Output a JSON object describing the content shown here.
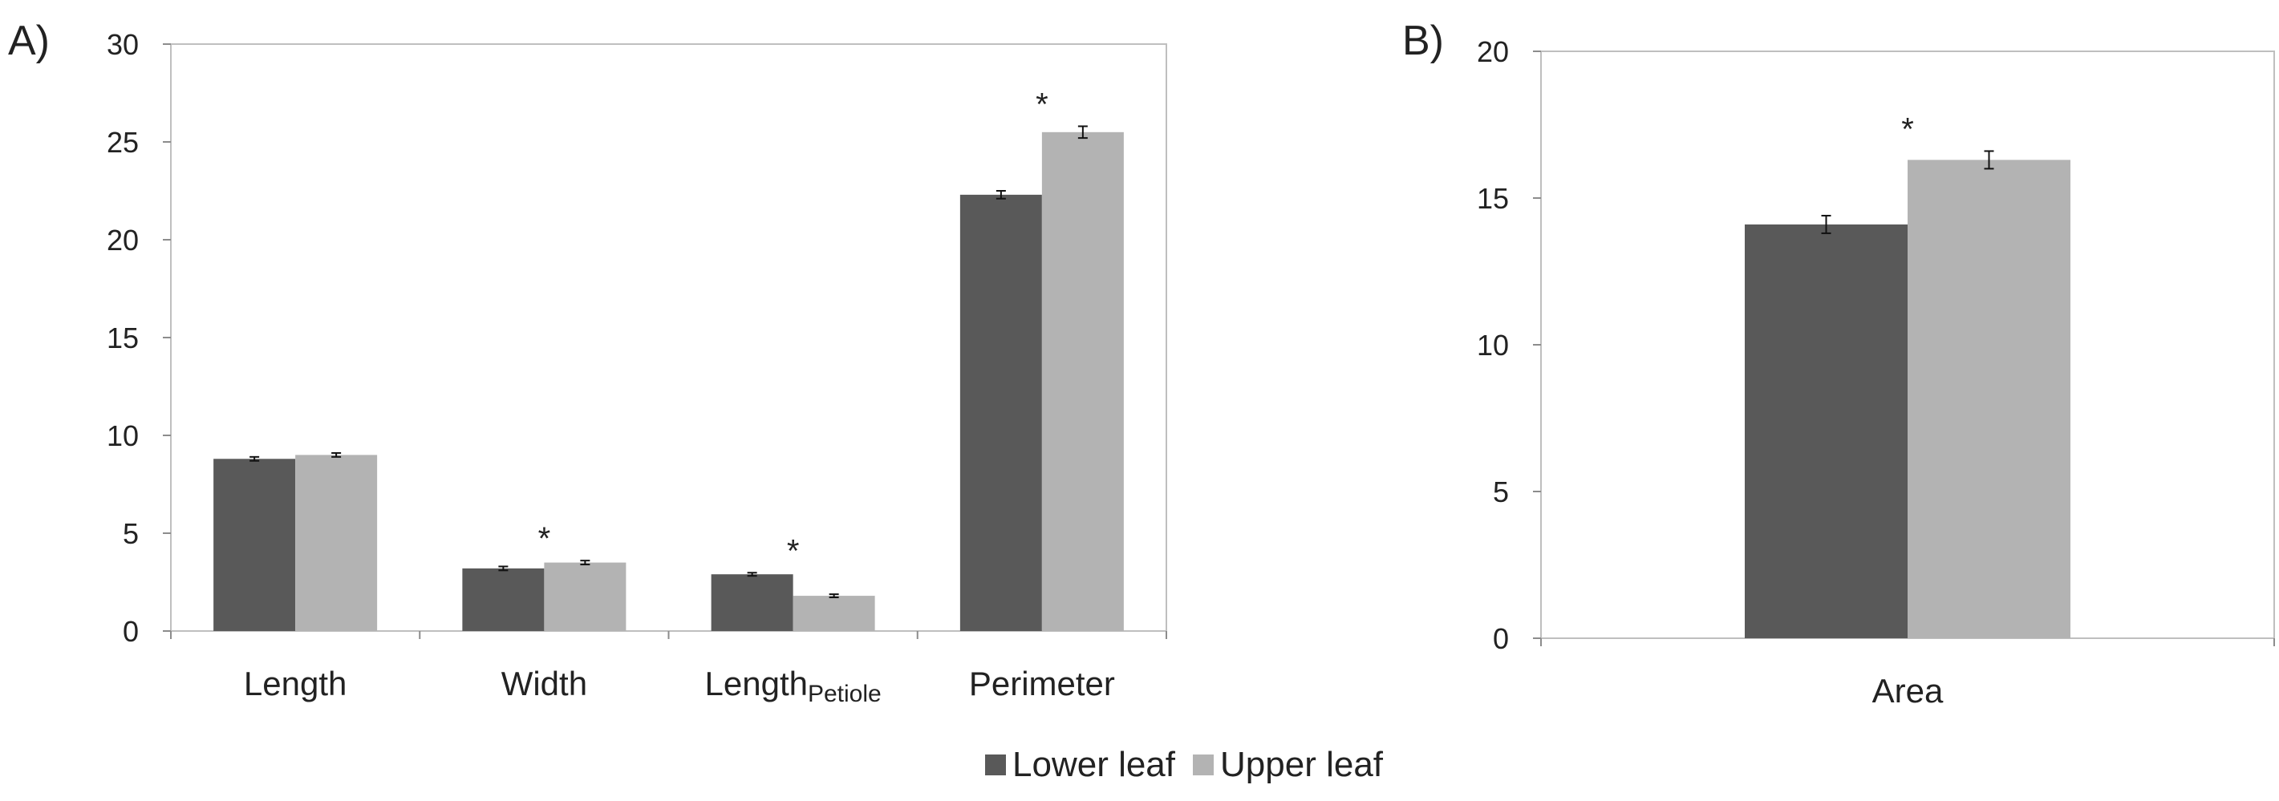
{
  "panels": [
    {
      "label": "A)",
      "chart_data": {
        "type": "bar",
        "categories": [
          "Length",
          "Width",
          "LengthPetiole",
          "Perimeter"
        ],
        "category_labels": [
          {
            "main": "Length",
            "sub": ""
          },
          {
            "main": "Width",
            "sub": ""
          },
          {
            "main": "Length",
            "sub": "Petiole"
          },
          {
            "main": "Perimeter",
            "sub": ""
          }
        ],
        "series": [
          {
            "name": "Lower leaf",
            "color": "#595959",
            "values": [
              8.8,
              3.2,
              2.9,
              22.3
            ],
            "errors": [
              0.1,
              0.1,
              0.08,
              0.2
            ]
          },
          {
            "name": "Upper leaf",
            "color": "#b3b3b3",
            "values": [
              9.0,
              3.5,
              1.8,
              25.5
            ],
            "errors": [
              0.1,
              0.1,
              0.08,
              0.3
            ]
          }
        ],
        "significance": [
          "",
          "*",
          "*",
          "*"
        ],
        "ylim": [
          0,
          30
        ],
        "yticks": [
          0,
          5,
          10,
          15,
          20,
          25,
          30
        ],
        "xlabel": "",
        "ylabel": "",
        "grid": false,
        "error_bars": true
      }
    },
    {
      "label": "B)",
      "chart_data": {
        "type": "bar",
        "categories": [
          "Area"
        ],
        "category_labels": [
          {
            "main": "Area",
            "sub": ""
          }
        ],
        "series": [
          {
            "name": "Lower leaf",
            "color": "#595959",
            "values": [
              14.1
            ],
            "errors": [
              0.3
            ]
          },
          {
            "name": "Upper leaf",
            "color": "#b3b3b3",
            "values": [
              16.3
            ],
            "errors": [
              0.3
            ]
          }
        ],
        "significance": [
          "*"
        ],
        "ylim": [
          0,
          20
        ],
        "yticks": [
          0,
          5,
          10,
          15,
          20
        ],
        "xlabel": "",
        "ylabel": "",
        "grid": false,
        "error_bars": true
      }
    }
  ],
  "legend": {
    "placement": "bottom-center",
    "items": [
      {
        "label": "Lower leaf",
        "color": "#595959"
      },
      {
        "label": "Upper leaf",
        "color": "#b3b3b3"
      }
    ]
  }
}
